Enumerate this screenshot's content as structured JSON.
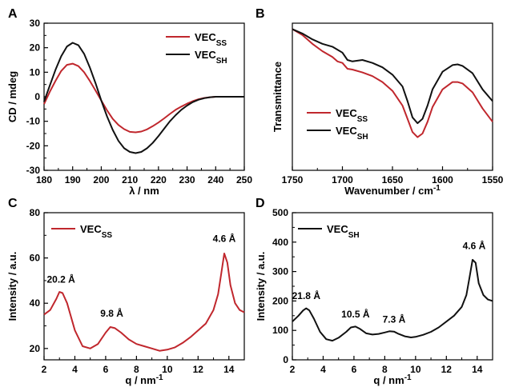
{
  "colors": {
    "ss": "#c0272d",
    "sh": "#111111"
  },
  "chart_data": [
    {
      "panel": "A",
      "type": "line",
      "xlabel": "λ / nm",
      "ylabel": "CD / mdeg",
      "xlim": [
        180,
        250
      ],
      "ylim": [
        -30,
        30
      ],
      "xticks": [
        180,
        190,
        200,
        210,
        220,
        230,
        240,
        250
      ],
      "yticks": [
        -30,
        -20,
        -10,
        0,
        10,
        20,
        30
      ],
      "legend_position": "top-right",
      "series": [
        {
          "name": "SS",
          "color": "#c0272d",
          "x": [
            180,
            182,
            184,
            186,
            188,
            190,
            192,
            194,
            196,
            198,
            200,
            202,
            204,
            206,
            208,
            210,
            212,
            214,
            216,
            218,
            220,
            222,
            224,
            226,
            228,
            230,
            232,
            234,
            236,
            238,
            240,
            242,
            244,
            246,
            248,
            250
          ],
          "y": [
            -3,
            2,
            6.5,
            10.5,
            13,
            13.5,
            12.5,
            10,
            6.5,
            2.5,
            -1.5,
            -5.5,
            -9,
            -11.5,
            -13.2,
            -14.3,
            -14.5,
            -14.2,
            -13.3,
            -12,
            -10.5,
            -8.8,
            -7,
            -5.3,
            -4,
            -2.8,
            -1.8,
            -1,
            -0.5,
            -0.2,
            0,
            0,
            0,
            0,
            0,
            0
          ]
        },
        {
          "name": "SH",
          "color": "#111111",
          "x": [
            180,
            182,
            184,
            186,
            188,
            190,
            192,
            194,
            196,
            198,
            200,
            202,
            204,
            206,
            208,
            210,
            212,
            214,
            216,
            218,
            220,
            222,
            224,
            226,
            228,
            230,
            232,
            234,
            236,
            238,
            240,
            242,
            244,
            246,
            248,
            250
          ],
          "y": [
            -2,
            4.5,
            11,
            16.5,
            20.5,
            22,
            21,
            17.5,
            12,
            5.5,
            -1.5,
            -8,
            -13.5,
            -18,
            -21,
            -22.5,
            -23,
            -22.5,
            -21,
            -18.8,
            -16,
            -13,
            -10,
            -7.5,
            -5.3,
            -3.6,
            -2.2,
            -1.2,
            -0.6,
            -0.2,
            0,
            0,
            0,
            0,
            0,
            0
          ]
        }
      ]
    },
    {
      "panel": "B",
      "type": "line",
      "xlabel": "Wavenumber / cm",
      "xlabel_sup": "-1",
      "ylabel": "Transmittance",
      "xlim": [
        1750,
        1550
      ],
      "ylim": [
        0,
        1
      ],
      "xticks": [
        1750,
        1700,
        1650,
        1600,
        1550
      ],
      "yticks": [],
      "legend_position": "bottom-left",
      "series": [
        {
          "name": "SS",
          "color": "#c0272d",
          "x": [
            1750,
            1740,
            1730,
            1720,
            1710,
            1705,
            1700,
            1695,
            1690,
            1680,
            1670,
            1660,
            1650,
            1640,
            1635,
            1630,
            1625,
            1620,
            1615,
            1610,
            1600,
            1590,
            1585,
            1580,
            1570,
            1560,
            1550
          ],
          "y": [
            0.96,
            0.92,
            0.86,
            0.81,
            0.77,
            0.74,
            0.73,
            0.69,
            0.685,
            0.665,
            0.64,
            0.6,
            0.54,
            0.44,
            0.35,
            0.26,
            0.225,
            0.25,
            0.33,
            0.43,
            0.55,
            0.6,
            0.6,
            0.59,
            0.53,
            0.42,
            0.33
          ]
        },
        {
          "name": "SH",
          "color": "#111111",
          "x": [
            1750,
            1740,
            1730,
            1720,
            1710,
            1705,
            1700,
            1695,
            1690,
            1680,
            1670,
            1660,
            1650,
            1640,
            1635,
            1630,
            1625,
            1620,
            1615,
            1610,
            1600,
            1590,
            1585,
            1580,
            1570,
            1560,
            1550
          ],
          "y": [
            0.96,
            0.93,
            0.89,
            0.86,
            0.84,
            0.82,
            0.8,
            0.75,
            0.74,
            0.75,
            0.73,
            0.7,
            0.65,
            0.57,
            0.47,
            0.36,
            0.32,
            0.35,
            0.44,
            0.55,
            0.67,
            0.715,
            0.72,
            0.71,
            0.66,
            0.55,
            0.47
          ]
        }
      ]
    },
    {
      "panel": "C",
      "type": "line",
      "xlabel": "q / nm",
      "xlabel_sup": "-1",
      "ylabel": "Intensity / a.u.",
      "xlim": [
        2,
        15
      ],
      "ylim": [
        15,
        80
      ],
      "xticks": [
        2,
        4,
        6,
        8,
        10,
        12,
        14
      ],
      "yticks": [
        20,
        40,
        60,
        80
      ],
      "legend_position": "top-left",
      "annotations": [
        {
          "text": "20.2 Å",
          "x": 3.1,
          "y": 47
        },
        {
          "text": "9.8 Å",
          "x": 6.4,
          "y": 32
        },
        {
          "text": "4.6 Å",
          "x": 13.7,
          "y": 65
        }
      ],
      "series": [
        {
          "name": "SS",
          "color": "#c0272d",
          "x": [
            2,
            2.4,
            2.8,
            3.0,
            3.2,
            3.5,
            4.0,
            4.5,
            5.0,
            5.5,
            6.0,
            6.3,
            6.6,
            7.0,
            7.5,
            8.0,
            8.5,
            9.0,
            9.5,
            10.0,
            10.5,
            11.0,
            11.5,
            12.0,
            12.5,
            13.0,
            13.3,
            13.5,
            13.7,
            13.9,
            14.1,
            14.4,
            14.7,
            15.0
          ],
          "y": [
            35,
            37,
            42,
            45,
            44.5,
            40,
            28,
            21,
            20,
            22,
            27,
            29.5,
            29,
            27,
            24,
            22,
            21,
            20,
            19,
            19.5,
            20.5,
            22.5,
            25,
            28,
            31,
            37,
            44,
            53,
            62,
            58,
            48,
            40,
            37,
            36
          ]
        }
      ]
    },
    {
      "panel": "D",
      "type": "line",
      "xlabel": "q / nm",
      "xlabel_sup": "-1",
      "ylabel": "Intensity / a.u.",
      "xlim": [
        2,
        15
      ],
      "ylim": [
        0,
        500
      ],
      "xticks": [
        2,
        4,
        6,
        8,
        10,
        12,
        14
      ],
      "yticks": [
        0,
        100,
        200,
        300,
        400,
        500
      ],
      "legend_position": "top-left",
      "annotations": [
        {
          "text": "21.8 Å",
          "x": 2.9,
          "y": 190
        },
        {
          "text": "10.5 Å",
          "x": 6.1,
          "y": 128
        },
        {
          "text": "7.3 Å",
          "x": 8.6,
          "y": 110
        },
        {
          "text": "4.6 Å",
          "x": 13.8,
          "y": 360
        }
      ],
      "series": [
        {
          "name": "SH",
          "color": "#111111",
          "x": [
            2,
            2.4,
            2.7,
            2.9,
            3.1,
            3.4,
            3.8,
            4.2,
            4.6,
            5.0,
            5.5,
            5.8,
            6.1,
            6.4,
            6.8,
            7.2,
            7.6,
            8.0,
            8.3,
            8.6,
            8.9,
            9.3,
            9.7,
            10.0,
            10.5,
            11.0,
            11.5,
            12.0,
            12.5,
            13.0,
            13.3,
            13.5,
            13.7,
            13.9,
            14.1,
            14.4,
            14.7,
            15.0
          ],
          "y": [
            130,
            150,
            168,
            175,
            168,
            140,
            95,
            70,
            65,
            75,
            95,
            110,
            113,
            105,
            90,
            86,
            88,
            93,
            97,
            96,
            88,
            80,
            76,
            78,
            85,
            95,
            110,
            130,
            150,
            180,
            220,
            280,
            340,
            330,
            260,
            220,
            205,
            200
          ]
        }
      ]
    }
  ],
  "legend_labels": {
    "A": [
      {
        "series": "SS",
        "base": "VEC",
        "sub": "SS"
      },
      {
        "series": "SH",
        "base": "VEC",
        "sub": "SH"
      }
    ],
    "B": [
      {
        "series": "SS",
        "base": "VEC",
        "sub": "SS"
      },
      {
        "series": "SH",
        "base": "VEC",
        "sub": "SH"
      }
    ],
    "C": [
      {
        "series": "SS",
        "base": "VEC",
        "sub": "SS"
      }
    ],
    "D": [
      {
        "series": "SH",
        "base": "VEC",
        "sub": "SH"
      }
    ]
  }
}
